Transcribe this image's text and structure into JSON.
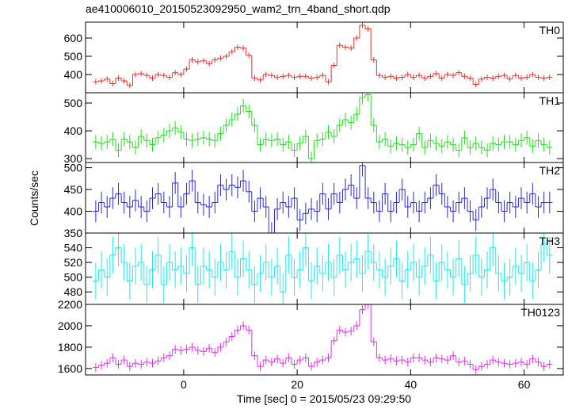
{
  "chart_data": {
    "type": "step",
    "title": "ae410006010_20150523092950_wam2_trn_4band_short.qdp",
    "xlabel": "Time [sec] 0 = 2015/05/23 09:29:50",
    "ylabel": "Counts/sec",
    "xlim": [
      -17.3,
      66.9
    ],
    "xticks": [
      0,
      20,
      40,
      60
    ],
    "x": [
      -15.5,
      -14.5,
      -13.5,
      -12.5,
      -11.5,
      -10.5,
      -9.5,
      -8.5,
      -7.5,
      -6.5,
      -5.5,
      -4.5,
      -3.5,
      -2.5,
      -1.5,
      -0.5,
      0.5,
      1.5,
      2.5,
      3.5,
      4.5,
      5.5,
      6.5,
      7.5,
      8.5,
      9.5,
      10.5,
      11.5,
      12.5,
      13.5,
      14.5,
      15.5,
      16.5,
      17.5,
      18.5,
      19.5,
      20.5,
      21.5,
      22.5,
      23.5,
      24.5,
      25.5,
      26.5,
      27.5,
      28.5,
      29.5,
      30.5,
      31.5,
      32.5,
      33.5,
      34.5,
      35.5,
      36.5,
      37.5,
      38.5,
      39.5,
      40.5,
      41.5,
      42.5,
      43.5,
      44.5,
      45.5,
      46.5,
      47.5,
      48.5,
      49.5,
      50.5,
      51.5,
      52.5,
      53.5,
      54.5,
      55.5,
      56.5,
      57.5,
      58.5,
      59.5,
      60.5,
      61.5,
      62.5,
      63.5,
      64.5
    ],
    "panels": [
      {
        "name": "TH0",
        "color": "#e8302a",
        "error": 15,
        "ylim": [
          300,
          687
        ],
        "yticks": [
          400,
          500,
          600
        ],
        "values": [
          360,
          365,
          375,
          350,
          380,
          365,
          340,
          400,
          405,
          395,
          380,
          400,
          395,
          385,
          410,
          400,
          430,
          480,
          470,
          475,
          460,
          480,
          490,
          500,
          525,
          550,
          545,
          505,
          380,
          370,
          400,
          395,
          385,
          390,
          395,
          385,
          390,
          390,
          380,
          385,
          395,
          360,
          450,
          560,
          550,
          545,
          600,
          670,
          650,
          480,
          395,
          385,
          390,
          380,
          385,
          400,
          385,
          395,
          380,
          390,
          405,
          380,
          400,
          395,
          410,
          390,
          380,
          345,
          375,
          385,
          380,
          390,
          395,
          375,
          395,
          380,
          385,
          400,
          385,
          380,
          385
        ]
      },
      {
        "name": "TH1",
        "color": "#22dd22",
        "error": 25,
        "ylim": [
          286,
          537
        ],
        "yticks": [
          300,
          400,
          500
        ],
        "values": [
          360,
          355,
          360,
          370,
          330,
          370,
          360,
          340,
          380,
          365,
          350,
          375,
          385,
          400,
          410,
          395,
          370,
          365,
          370,
          375,
          370,
          365,
          390,
          420,
          440,
          460,
          490,
          470,
          420,
          350,
          370,
          365,
          370,
          350,
          360,
          330,
          355,
          380,
          300,
          365,
          370,
          395,
          380,
          420,
          440,
          430,
          460,
          520,
          530,
          420,
          360,
          370,
          345,
          355,
          350,
          340,
          350,
          390,
          340,
          365,
          355,
          345,
          360,
          350,
          330,
          375,
          340,
          355,
          340,
          330,
          355,
          350,
          360,
          360,
          350,
          365,
          375,
          345,
          365,
          350,
          340
        ]
      },
      {
        "name": "TH2",
        "color": "#2a2ad0",
        "error": 25,
        "ylim": [
          350,
          512
        ],
        "yticks": [
          350,
          400,
          450,
          500
        ],
        "values": [
          400,
          420,
          410,
          430,
          440,
          420,
          410,
          425,
          410,
          400,
          430,
          440,
          420,
          410,
          465,
          410,
          440,
          470,
          420,
          415,
          410,
          420,
          460,
          450,
          460,
          455,
          470,
          445,
          400,
          430,
          410,
          350,
          405,
          420,
          410,
          430,
          380,
          395,
          405,
          400,
          440,
          405,
          440,
          420,
          450,
          460,
          430,
          505,
          430,
          420,
          400,
          440,
          400,
          420,
          450,
          410,
          420,
          400,
          420,
          430,
          460,
          440,
          410,
          400,
          420,
          430,
          400,
          380,
          410,
          430,
          450,
          420,
          400,
          420,
          410,
          430,
          420,
          440,
          410,
          420,
          420
        ]
      },
      {
        "name": "TH3",
        "color": "#22e8e8",
        "error": 25,
        "ylim": [
          463,
          560
        ],
        "yticks": [
          480,
          500,
          520,
          540
        ],
        "values": [
          495,
          510,
          500,
          530,
          540,
          520,
          495,
          515,
          520,
          490,
          510,
          530,
          490,
          520,
          510,
          515,
          505,
          540,
          490,
          515,
          510,
          500,
          520,
          510,
          535,
          500,
          525,
          510,
          490,
          505,
          520,
          500,
          515,
          480,
          530,
          500,
          510,
          540,
          495,
          515,
          505,
          520,
          500,
          530,
          510,
          520,
          525,
          505,
          535,
          520,
          510,
          500,
          515,
          525,
          495,
          510,
          520,
          500,
          515,
          530,
          495,
          520,
          510,
          500,
          525,
          490,
          505,
          530,
          500,
          510,
          540,
          505,
          495,
          500,
          515,
          505,
          520,
          495,
          510,
          545,
          530
        ]
      },
      {
        "name": "TH0123",
        "color": "#e030e8",
        "error": 40,
        "ylim": [
          1540,
          2200
        ],
        "yticks": [
          1600,
          1800,
          2000,
          2200
        ],
        "values": [
          1610,
          1630,
          1650,
          1700,
          1640,
          1680,
          1620,
          1650,
          1640,
          1660,
          1650,
          1670,
          1700,
          1720,
          1780,
          1770,
          1780,
          1800,
          1770,
          1760,
          1790,
          1750,
          1800,
          1850,
          1900,
          1960,
          2000,
          1960,
          1720,
          1620,
          1680,
          1660,
          1690,
          1650,
          1700,
          1640,
          1680,
          1700,
          1620,
          1660,
          1680,
          1700,
          1860,
          1960,
          1940,
          1950,
          2000,
          2150,
          2200,
          1850,
          1700,
          1680,
          1690,
          1670,
          1680,
          1660,
          1700,
          1700,
          1680,
          1660,
          1700,
          1690,
          1680,
          1720,
          1660,
          1670,
          1640,
          1590,
          1620,
          1640,
          1680,
          1660,
          1650,
          1640,
          1650,
          1660,
          1640,
          1690,
          1660,
          1620,
          1640
        ]
      }
    ]
  }
}
